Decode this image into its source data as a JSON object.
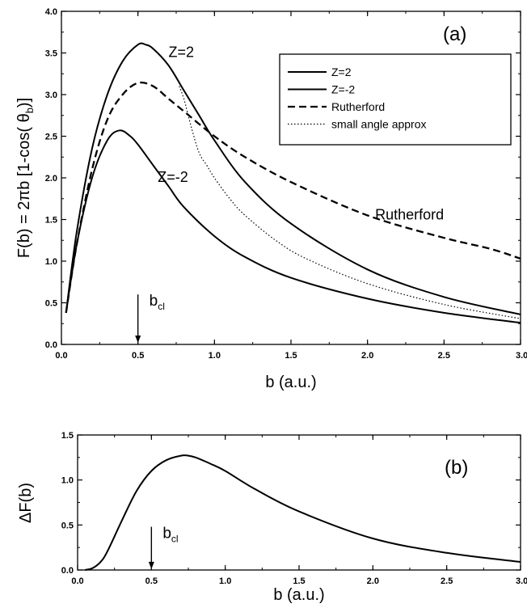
{
  "chart_data": [
    {
      "type": "line",
      "panel_label": "(a)",
      "xlabel": "b (a.u.)",
      "ylabel_main": "F(b) = 2πb [1-cos( θ",
      "ylabel_sub": "b",
      "ylabel_tail": ")]",
      "xlim": [
        0.0,
        3.0
      ],
      "ylim": [
        0.0,
        4.0
      ],
      "xticks": [
        "0.0",
        "0.5",
        "1.0",
        "1.5",
        "2.0",
        "2.5",
        "3.0"
      ],
      "yticks": [
        "0.0",
        "0.5",
        "1.0",
        "1.5",
        "2.0",
        "2.5",
        "3.0",
        "3.5",
        "4.0"
      ],
      "legend_position": "top-right",
      "series": [
        {
          "name": "Z=2",
          "style": "solid",
          "x": [
            0.03,
            0.1,
            0.2,
            0.3,
            0.4,
            0.5,
            0.55,
            0.6,
            0.7,
            0.8,
            0.9,
            1.0,
            1.2,
            1.5,
            2.0,
            2.5,
            3.0
          ],
          "y": [
            0.38,
            1.35,
            2.35,
            3.0,
            3.4,
            3.6,
            3.6,
            3.55,
            3.35,
            3.05,
            2.75,
            2.45,
            1.95,
            1.45,
            0.9,
            0.57,
            0.36
          ]
        },
        {
          "name": "Z=-2",
          "style": "solid",
          "x": [
            0.03,
            0.1,
            0.2,
            0.3,
            0.38,
            0.45,
            0.5,
            0.6,
            0.7,
            0.8,
            1.0,
            1.2,
            1.5,
            2.0,
            2.5,
            3.0
          ],
          "y": [
            0.38,
            1.2,
            2.0,
            2.45,
            2.57,
            2.5,
            2.4,
            2.15,
            1.9,
            1.65,
            1.3,
            1.05,
            0.8,
            0.55,
            0.38,
            0.26
          ]
        },
        {
          "name": "Rutherford",
          "style": "dashed",
          "x": [
            0.03,
            0.1,
            0.2,
            0.3,
            0.4,
            0.5,
            0.6,
            0.7,
            0.8,
            1.0,
            1.2,
            1.5,
            2.0,
            2.5,
            2.8,
            3.0
          ],
          "y": [
            0.38,
            1.2,
            2.1,
            2.7,
            3.0,
            3.14,
            3.1,
            2.95,
            2.8,
            2.5,
            2.25,
            1.95,
            1.55,
            1.28,
            1.15,
            1.03
          ]
        },
        {
          "name": "small angle approx",
          "style": "dotted",
          "x": [
            0.77,
            0.8,
            0.85,
            0.9,
            0.95,
            1.0,
            1.1,
            1.2,
            1.4,
            1.6,
            2.0,
            2.5,
            3.0
          ],
          "y": [
            3.1,
            2.95,
            2.6,
            2.3,
            2.15,
            2.0,
            1.75,
            1.55,
            1.25,
            1.03,
            0.73,
            0.48,
            0.31
          ]
        }
      ],
      "annotations": [
        {
          "text": "Z=2",
          "x": 0.7,
          "y": 3.45
        },
        {
          "text": "Z=-2",
          "x": 0.63,
          "y": 1.95
        },
        {
          "text": "Rutherford",
          "x": 2.05,
          "y": 1.5
        }
      ],
      "arrow": {
        "x": 0.5,
        "y_from": 0.6,
        "y_to": 0.02,
        "label_main": "b",
        "label_sub": "cl"
      }
    },
    {
      "type": "line",
      "panel_label": "(b)",
      "xlabel": "b (a.u.)",
      "ylabel": "ΔF(b)",
      "xlim": [
        0.0,
        3.0
      ],
      "ylim": [
        0.0,
        1.5
      ],
      "xticks": [
        "0.0",
        "0.5",
        "1.0",
        "1.5",
        "2.0",
        "2.5",
        "3.0"
      ],
      "yticks": [
        "0.0",
        "0.5",
        "1.0",
        "1.5"
      ],
      "series": [
        {
          "style": "solid",
          "x": [
            0.05,
            0.1,
            0.15,
            0.2,
            0.3,
            0.4,
            0.5,
            0.6,
            0.7,
            0.75,
            0.8,
            0.9,
            1.0,
            1.2,
            1.5,
            2.0,
            2.5,
            3.0
          ],
          "y": [
            0.0,
            0.02,
            0.08,
            0.2,
            0.55,
            0.88,
            1.1,
            1.22,
            1.27,
            1.27,
            1.25,
            1.18,
            1.1,
            0.9,
            0.65,
            0.35,
            0.19,
            0.09
          ]
        }
      ],
      "arrow": {
        "x": 0.5,
        "y_from": 0.48,
        "y_to": 0.01,
        "label_main": "b",
        "label_sub": "cl"
      }
    }
  ]
}
